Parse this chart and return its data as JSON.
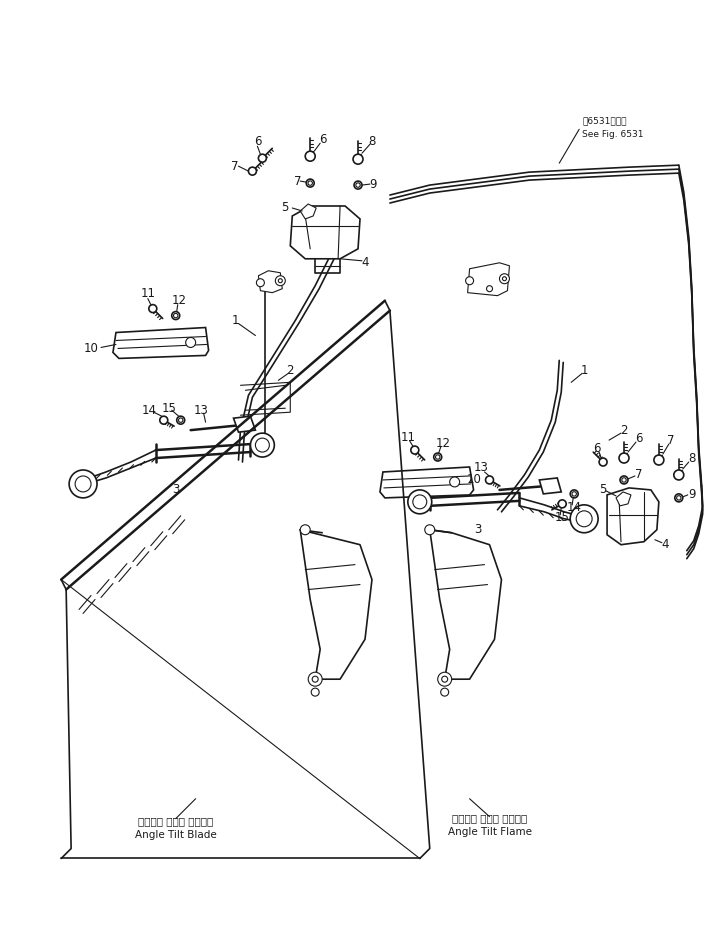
{
  "background_color": "#ffffff",
  "line_color": "#1a1a1a",
  "fig_width": 7.27,
  "fig_height": 9.33,
  "note_text1": "第6531図参照",
  "note_text2": "See Fig. 6531",
  "label_blade_jp": "アングル チルト ブレード",
  "label_blade_en": "Angle Tilt Blade",
  "label_flame_jp": "アングル チルト フレーム",
  "label_flame_en": "Angle Tilt Flame",
  "font_small": 6.5,
  "font_label": 7.5,
  "font_part": 8.5
}
